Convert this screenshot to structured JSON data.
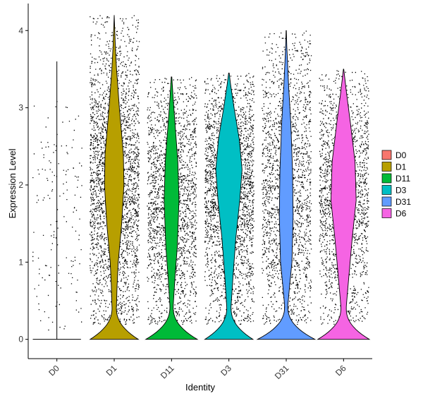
{
  "chart_data": {
    "type": "violin",
    "xlabel": "Identity",
    "ylabel": "Expression Level",
    "ylim": [
      -0.25,
      4.35
    ],
    "yticks": [
      0,
      1,
      2,
      3,
      4
    ],
    "grid": false,
    "legend_position": "right",
    "categories": [
      "D0",
      "D1",
      "D11",
      "D3",
      "D31",
      "D6"
    ],
    "colors": [
      "#F8766D",
      "#B79F00",
      "#00BA38",
      "#00BFC4",
      "#619CFF",
      "#F564E3"
    ],
    "series": [
      {
        "name": "D0",
        "max": 3.6,
        "zero_bulge": 0.0,
        "body": []
      },
      {
        "name": "D1",
        "max": 4.2,
        "zero_bulge": 0.42,
        "body": [
          [
            0.45,
            0.04
          ],
          [
            0.7,
            0.05
          ],
          [
            1.0,
            0.07
          ],
          [
            1.5,
            0.13
          ],
          [
            2.0,
            0.17
          ],
          [
            2.4,
            0.16
          ],
          [
            3.0,
            0.09
          ],
          [
            3.5,
            0.04
          ],
          [
            3.8,
            0.02
          ]
        ]
      },
      {
        "name": "D11",
        "max": 3.4,
        "zero_bulge": 0.45,
        "body": [
          [
            0.45,
            0.03
          ],
          [
            0.8,
            0.06
          ],
          [
            1.2,
            0.1
          ],
          [
            1.8,
            0.13
          ],
          [
            2.3,
            0.11
          ],
          [
            2.8,
            0.06
          ],
          [
            3.1,
            0.03
          ],
          [
            3.4,
            0.005
          ]
        ]
      },
      {
        "name": "D3",
        "max": 3.45,
        "zero_bulge": 0.42,
        "body": [
          [
            0.45,
            0.04
          ],
          [
            0.8,
            0.07
          ],
          [
            1.3,
            0.12
          ],
          [
            1.8,
            0.19
          ],
          [
            2.2,
            0.23
          ],
          [
            2.6,
            0.18
          ],
          [
            3.0,
            0.09
          ],
          [
            3.3,
            0.03
          ],
          [
            3.45,
            0.005
          ]
        ]
      },
      {
        "name": "D31",
        "max": 4.0,
        "zero_bulge": 0.5,
        "body": [
          [
            0.45,
            0.03
          ],
          [
            0.7,
            0.06
          ],
          [
            1.0,
            0.1
          ],
          [
            1.6,
            0.12
          ],
          [
            2.2,
            0.11
          ],
          [
            2.8,
            0.08
          ],
          [
            3.3,
            0.04
          ],
          [
            3.8,
            0.01
          ],
          [
            4.0,
            0.003
          ]
        ]
      },
      {
        "name": "D6",
        "max": 3.5,
        "zero_bulge": 0.45,
        "body": [
          [
            0.45,
            0.05
          ],
          [
            0.8,
            0.09
          ],
          [
            1.3,
            0.15
          ],
          [
            1.8,
            0.22
          ],
          [
            2.3,
            0.2
          ],
          [
            2.8,
            0.12
          ],
          [
            3.2,
            0.05
          ],
          [
            3.5,
            0.003
          ]
        ]
      }
    ]
  }
}
